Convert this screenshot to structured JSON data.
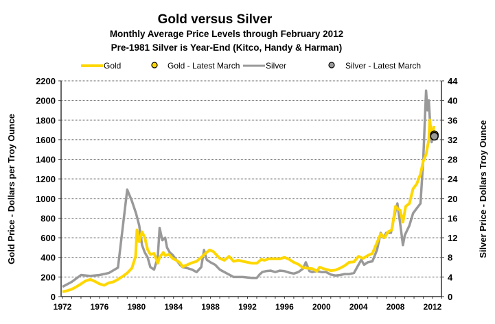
{
  "chart_data": {
    "type": "line",
    "title": "Gold versus Silver",
    "subtitle_lines": [
      "Monthly Average Price Levels through February 2012",
      "Pre-1981 Silver is Year-End (Kitco, Handy & Harman)"
    ],
    "xlabel": "",
    "ylabel_left": "Gold Price - Dollars per Troy Ounce",
    "ylabel_right": "Silver Price - Dollars Troy Ounce",
    "x_range": [
      1972,
      2013
    ],
    "x_ticks": [
      1972,
      1976,
      1980,
      1984,
      1988,
      1992,
      1996,
      2000,
      2004,
      2008,
      2012
    ],
    "ylim_left": [
      0,
      2200
    ],
    "y_ticks_left": [
      0,
      200,
      400,
      600,
      800,
      1000,
      1200,
      1400,
      1600,
      1800,
      2000,
      2200
    ],
    "ylim_right": [
      0,
      44
    ],
    "y_ticks_right": [
      0,
      4,
      8,
      12,
      16,
      20,
      24,
      28,
      32,
      36,
      40,
      44
    ],
    "grid": true,
    "legend_position": "top",
    "legend": [
      {
        "label": "Gold",
        "kind": "line",
        "color": "#FFD700"
      },
      {
        "label": "Gold - Latest March",
        "kind": "marker",
        "color": "#FFD700"
      },
      {
        "label": "Silver",
        "kind": "line",
        "color": "#999999"
      },
      {
        "label": "Silver - Latest March",
        "kind": "marker",
        "color": "#999999"
      }
    ],
    "series": [
      {
        "name": "Gold",
        "axis": "left",
        "color": "#FFD700",
        "x": [
          1972.0,
          1972.5,
          1973.0,
          1973.5,
          1974.0,
          1974.5,
          1975.0,
          1975.5,
          1976.0,
          1976.5,
          1977.0,
          1977.5,
          1978.0,
          1978.5,
          1979.0,
          1979.5,
          1979.9,
          1980.05,
          1980.3,
          1980.6,
          1980.9,
          1981.2,
          1981.5,
          1981.9,
          1982.3,
          1982.5,
          1982.9,
          1983.1,
          1983.5,
          1983.9,
          1984.3,
          1984.7,
          1985.0,
          1985.5,
          1986.0,
          1986.5,
          1987.0,
          1987.5,
          1987.9,
          1988.3,
          1988.7,
          1989.0,
          1989.5,
          1990.0,
          1990.5,
          1991.0,
          1991.5,
          1992.0,
          1992.5,
          1993.0,
          1993.5,
          1993.8,
          1994.3,
          1995.0,
          1995.5,
          1996.0,
          1996.5,
          1997.0,
          1997.5,
          1998.0,
          1998.5,
          1999.0,
          1999.5,
          1999.8,
          2000.2,
          2000.6,
          2001.0,
          2001.5,
          2002.0,
          2002.5,
          2003.0,
          2003.5,
          2004.0,
          2004.5,
          2005.0,
          2005.5,
          2006.0,
          2006.4,
          2006.8,
          2007.2,
          2007.6,
          2008.0,
          2008.2,
          2008.5,
          2008.8,
          2009.1,
          2009.5,
          2009.9,
          2010.3,
          2010.7,
          2011.0,
          2011.3,
          2011.6,
          2011.7,
          2011.85,
          2012.0,
          2012.15
        ],
        "values": [
          48,
          60,
          75,
          100,
          130,
          160,
          175,
          155,
          130,
          115,
          140,
          150,
          175,
          205,
          240,
          290,
          410,
          680,
          560,
          660,
          600,
          480,
          430,
          440,
          340,
          400,
          450,
          420,
          430,
          390,
          370,
          345,
          305,
          325,
          345,
          360,
          400,
          445,
          475,
          460,
          420,
          390,
          370,
          410,
          360,
          370,
          360,
          350,
          340,
          340,
          380,
          370,
          385,
          385,
          385,
          400,
          380,
          350,
          330,
          295,
          290,
          285,
          260,
          300,
          285,
          275,
          265,
          270,
          290,
          315,
          350,
          355,
          410,
          390,
          420,
          440,
          550,
          640,
          600,
          660,
          680,
          920,
          900,
          880,
          760,
          920,
          950,
          1100,
          1150,
          1250,
          1380,
          1450,
          1600,
          1800,
          1680,
          1640,
          1740
        ]
      },
      {
        "name": "Silver",
        "axis": "right",
        "color": "#999999",
        "x": [
          1972.0,
          1973.0,
          1974.0,
          1975.0,
          1976.0,
          1977.0,
          1978.0,
          1979.0,
          1979.5,
          1979.95,
          1980.3,
          1980.6,
          1980.9,
          1981.2,
          1981.5,
          1981.9,
          1982.3,
          1982.5,
          1982.8,
          1983.1,
          1983.3,
          1983.6,
          1983.9,
          1984.3,
          1984.7,
          1985.0,
          1985.5,
          1986.0,
          1986.5,
          1987.0,
          1987.3,
          1987.6,
          1988.0,
          1988.5,
          1989.0,
          1989.5,
          1990.0,
          1990.5,
          1991.0,
          1991.5,
          1992.0,
          1992.5,
          1993.0,
          1993.3,
          1993.6,
          1994.0,
          1994.5,
          1995.0,
          1995.5,
          1996.0,
          1996.5,
          1997.0,
          1997.5,
          1998.0,
          1998.3,
          1998.7,
          1999.0,
          1999.5,
          2000.0,
          2000.5,
          2001.0,
          2001.5,
          2002.0,
          2002.5,
          2003.0,
          2003.5,
          2004.0,
          2004.3,
          2004.6,
          2005.0,
          2005.5,
          2006.0,
          2006.4,
          2006.7,
          2007.0,
          2007.5,
          2008.0,
          2008.2,
          2008.5,
          2008.8,
          2009.0,
          2009.5,
          2009.9,
          2010.3,
          2010.7,
          2011.0,
          2011.3,
          2011.45,
          2011.6,
          2011.75,
          2011.9,
          2012.1
        ],
        "values": [
          2.0,
          3.0,
          4.4,
          4.2,
          4.4,
          4.8,
          5.9,
          21.8,
          19.5,
          17.0,
          14.5,
          10.5,
          9.0,
          8.0,
          6.0,
          5.5,
          8.0,
          14.0,
          11.5,
          12.0,
          10.0,
          9.0,
          8.5,
          7.5,
          6.5,
          6.0,
          5.8,
          5.5,
          5.0,
          6.0,
          9.5,
          7.5,
          7.0,
          6.5,
          5.5,
          5.0,
          4.5,
          4.0,
          4.0,
          4.0,
          3.9,
          3.8,
          3.8,
          4.5,
          5.0,
          5.2,
          5.3,
          5.0,
          5.3,
          5.2,
          4.9,
          4.7,
          5.0,
          5.7,
          7.0,
          5.2,
          5.0,
          5.2,
          5.0,
          5.0,
          4.5,
          4.3,
          4.4,
          4.6,
          4.6,
          4.8,
          6.5,
          7.5,
          6.5,
          7.0,
          7.2,
          9.5,
          13.0,
          12.0,
          13.0,
          13.0,
          17.5,
          19.0,
          15.0,
          10.5,
          12.5,
          14.5,
          17.0,
          18.0,
          19.0,
          28.0,
          42.0,
          38.0,
          40.0,
          35.0,
          31.5,
          34.0
        ]
      }
    ],
    "latest_points": [
      {
        "name": "Gold - Latest March",
        "axis": "left",
        "x": 2012.2,
        "value": 1650,
        "color": "#FFD700"
      },
      {
        "name": "Silver - Latest March",
        "axis": "right",
        "x": 2012.2,
        "value": 32.7,
        "color": "#999999"
      }
    ]
  }
}
